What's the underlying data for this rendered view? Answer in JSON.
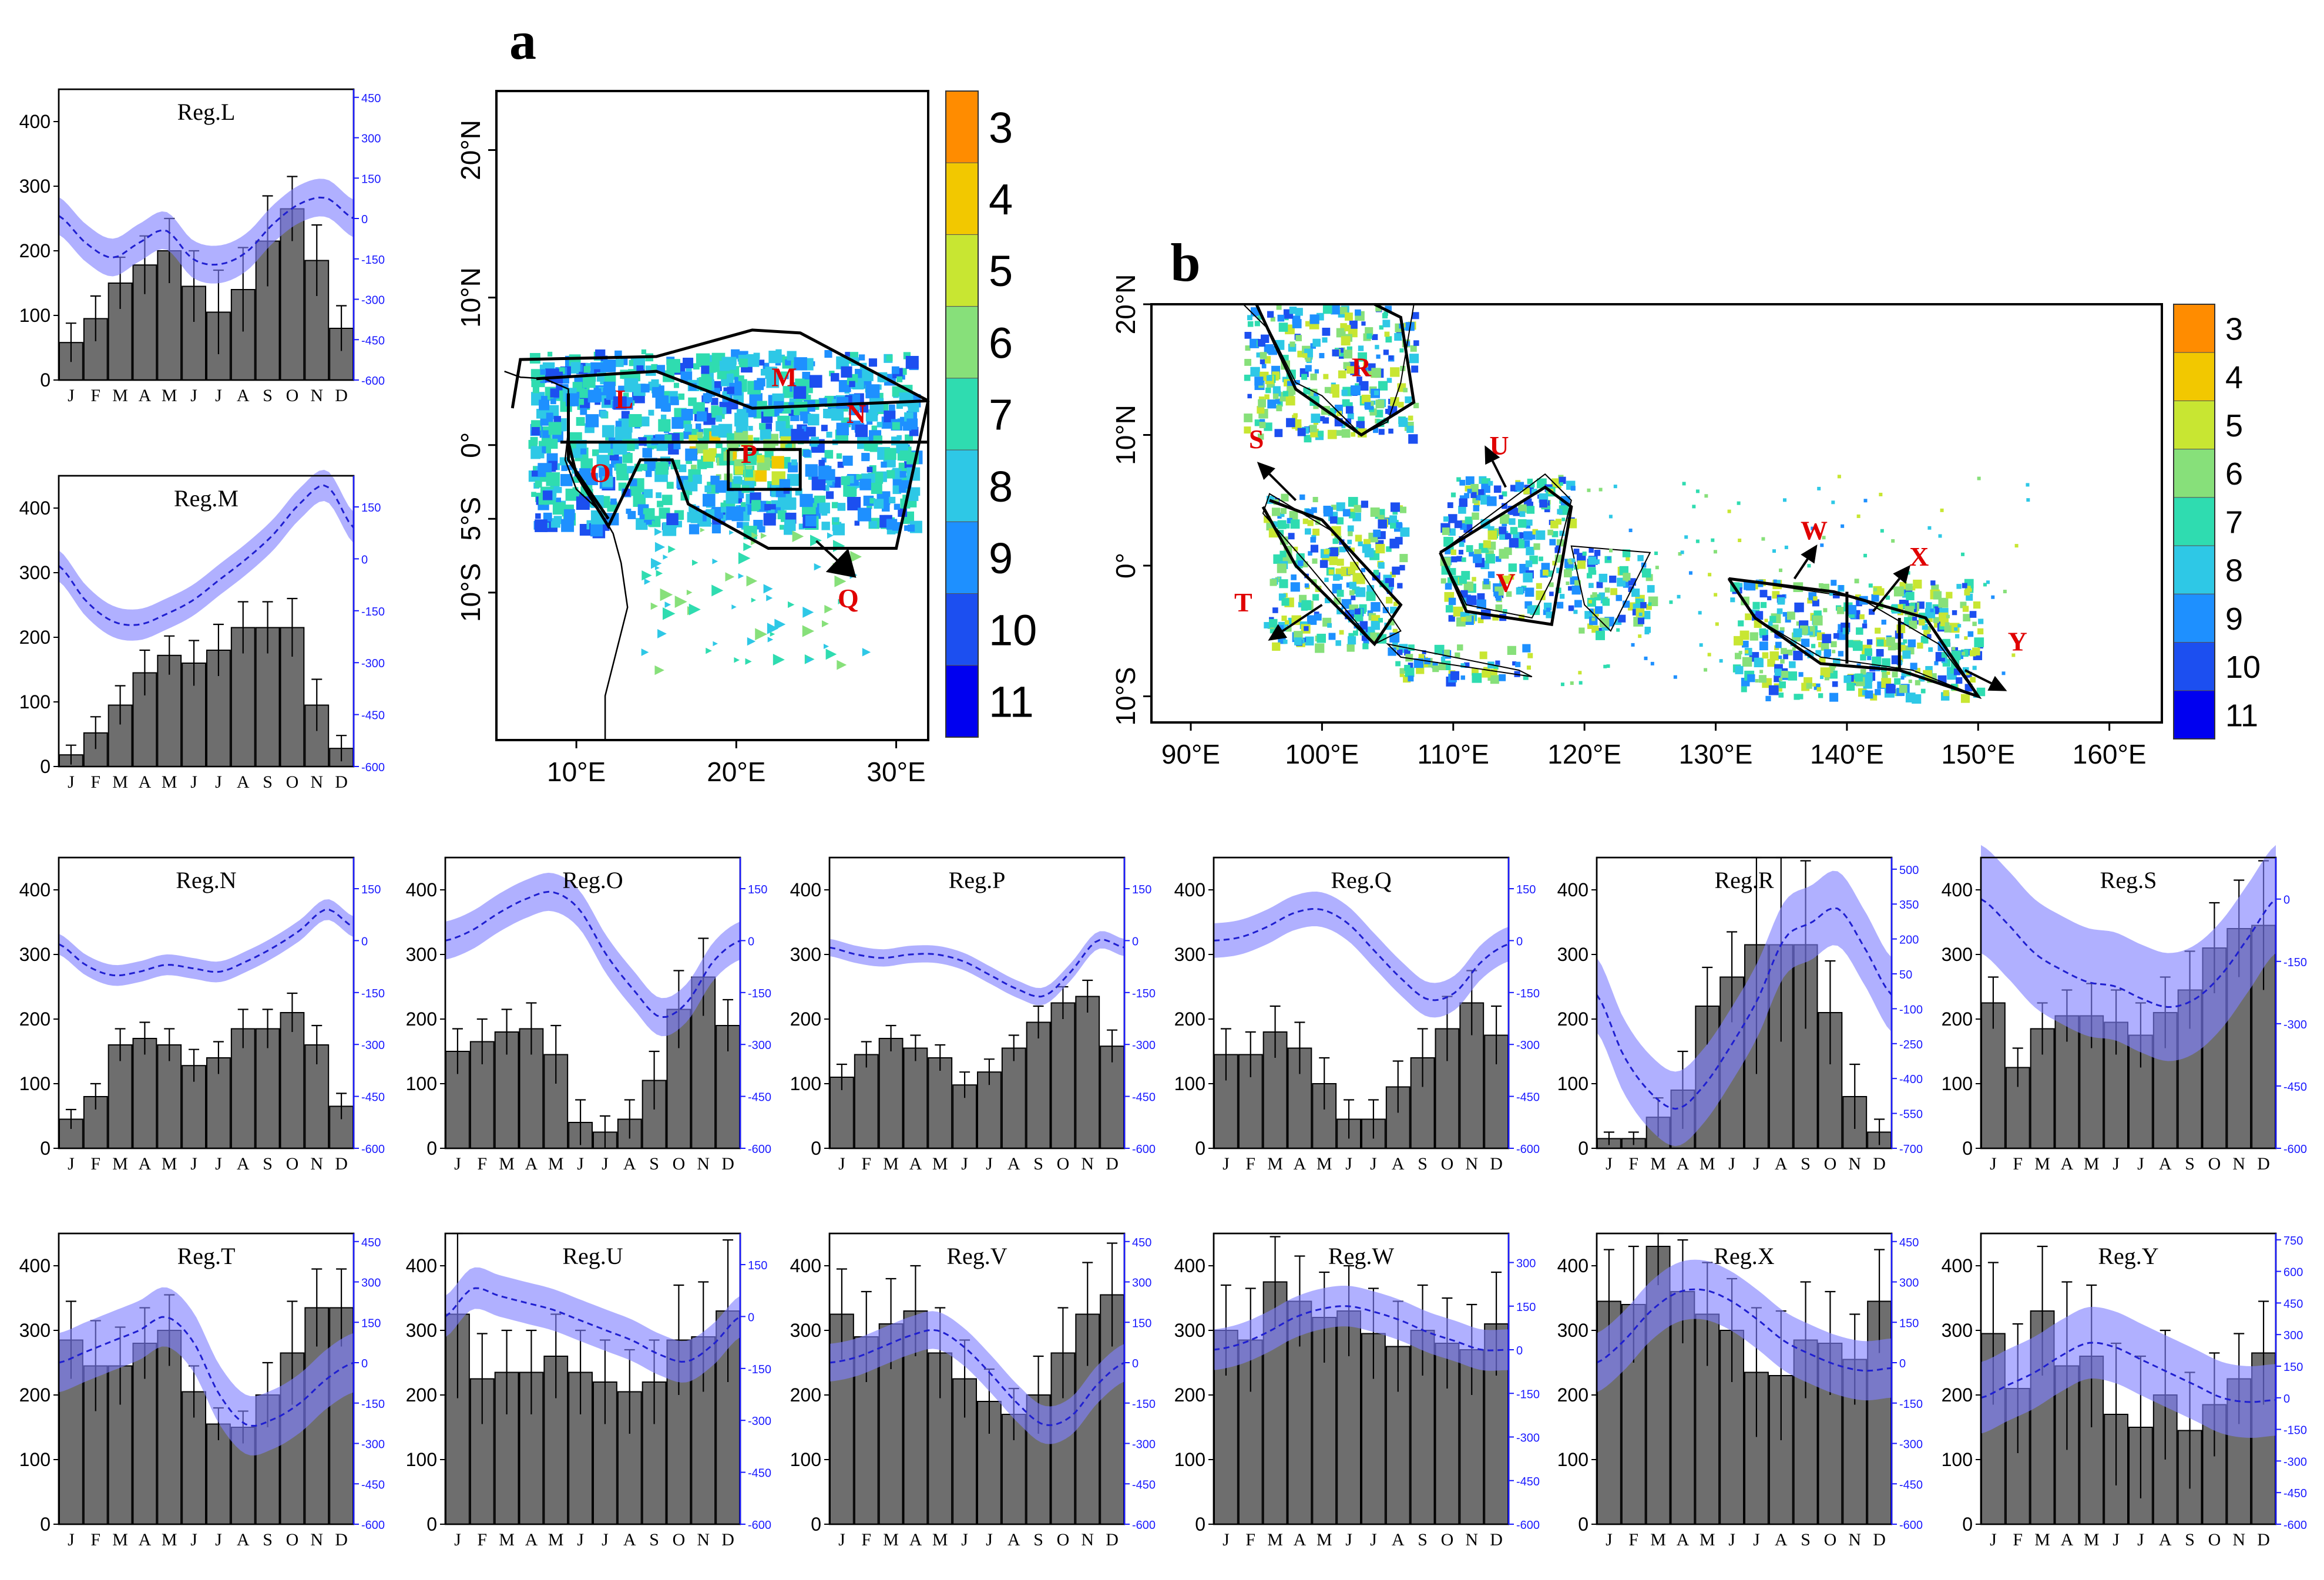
{
  "colors": {
    "bar": "#6e6e6e",
    "band": "#8080ff",
    "line": "#1f1fd0",
    "right_axis": "#1a1aff",
    "region_label": "#e00000",
    "palette": [
      "#ff8c00",
      "#f2c800",
      "#c8e632",
      "#87e07a",
      "#2fdcb0",
      "#2ec8e6",
      "#1e90ff",
      "#1c4ff0",
      "#0000f0"
    ]
  },
  "map_a": {
    "panel_label": "a",
    "lat_ticks": [
      "20°N",
      "10°N",
      "0°",
      "5°S",
      "10°S"
    ],
    "lon_ticks": [
      "10°E",
      "20°E",
      "30°E"
    ],
    "colorbar_labels": [
      "3",
      "4",
      "5",
      "6",
      "7",
      "8",
      "9",
      "10",
      "11"
    ],
    "regions": [
      "L",
      "M",
      "N",
      "O",
      "P",
      "Q"
    ]
  },
  "map_b": {
    "panel_label": "b",
    "lat_ticks": [
      "20°N",
      "10°N",
      "0°",
      "10°S"
    ],
    "lon_ticks": [
      "90°E",
      "100°E",
      "110°E",
      "120°E",
      "130°E",
      "140°E",
      "150°E",
      "160°E"
    ],
    "colorbar_labels": [
      "3",
      "4",
      "5",
      "6",
      "7",
      "8",
      "9",
      "10",
      "11"
    ],
    "regions": [
      "R",
      "S",
      "T",
      "U",
      "V",
      "W",
      "X",
      "Y"
    ]
  },
  "months": [
    "J",
    "F",
    "M",
    "A",
    "M",
    "J",
    "J",
    "A",
    "S",
    "O",
    "N",
    "D"
  ],
  "chart_data": [
    {
      "type": "bar",
      "title": "Reg.L",
      "ylim": [
        0,
        450
      ],
      "y_ticks": [
        0,
        100,
        200,
        300,
        400
      ],
      "right_ticks": [
        -600,
        -450,
        -300,
        -150,
        0,
        150,
        300,
        450
      ],
      "right_lim": [
        -600,
        480
      ],
      "values": [
        58,
        95,
        150,
        178,
        200,
        145,
        105,
        140,
        215,
        265,
        185,
        80
      ],
      "err": [
        30,
        35,
        40,
        45,
        50,
        55,
        65,
        65,
        70,
        50,
        55,
        35
      ],
      "line": [
        10,
        -90,
        -145,
        -90,
        -45,
        -150,
        -170,
        -125,
        -20,
        55,
        75,
        0
      ],
      "band_w": 70
    },
    {
      "type": "bar",
      "title": "Reg.M",
      "ylim": [
        0,
        450
      ],
      "y_ticks": [
        0,
        100,
        200,
        300,
        400
      ],
      "right_ticks": [
        -600,
        -450,
        -300,
        -150,
        0,
        150
      ],
      "right_lim": [
        -600,
        240
      ],
      "values": [
        18,
        52,
        95,
        145,
        172,
        160,
        180,
        215,
        215,
        215,
        95,
        28
      ],
      "err": [
        15,
        25,
        30,
        35,
        30,
        35,
        40,
        40,
        40,
        45,
        40,
        20
      ],
      "line": [
        -20,
        -120,
        -180,
        -190,
        -160,
        -120,
        -60,
        0,
        70,
        160,
        210,
        90
      ],
      "band_w": 45
    },
    {
      "type": "bar",
      "title": "Reg.N",
      "ylim": [
        0,
        450
      ],
      "y_ticks": [
        0,
        100,
        200,
        300,
        400
      ],
      "right_ticks": [
        -600,
        -450,
        -300,
        -150,
        0,
        150
      ],
      "right_lim": [
        -600,
        240
      ],
      "values": [
        45,
        80,
        160,
        170,
        160,
        128,
        140,
        185,
        185,
        210,
        160,
        65
      ],
      "err": [
        15,
        20,
        25,
        25,
        25,
        25,
        25,
        30,
        30,
        30,
        30,
        20
      ],
      "line": [
        -10,
        -70,
        -100,
        -90,
        -70,
        -80,
        -90,
        -60,
        -20,
        30,
        90,
        40
      ],
      "band_w": 30
    },
    {
      "type": "bar",
      "title": "Reg.O",
      "ylim": [
        0,
        450
      ],
      "y_ticks": [
        0,
        100,
        200,
        300,
        400
      ],
      "right_ticks": [
        -600,
        -450,
        -300,
        -150,
        0,
        150
      ],
      "right_lim": [
        -600,
        240
      ],
      "values": [
        150,
        165,
        180,
        185,
        145,
        40,
        25,
        45,
        105,
        215,
        265,
        190
      ],
      "err": [
        35,
        35,
        35,
        40,
        45,
        35,
        25,
        30,
        45,
        60,
        60,
        40
      ],
      "line": [
        0,
        30,
        80,
        120,
        140,
        90,
        -40,
        -140,
        -220,
        -180,
        -60,
        0
      ],
      "band_w": 55
    },
    {
      "type": "bar",
      "title": "Reg.P",
      "ylim": [
        0,
        450
      ],
      "y_ticks": [
        0,
        100,
        200,
        300,
        400
      ],
      "right_ticks": [
        -600,
        -450,
        -300,
        -150,
        0,
        150
      ],
      "right_lim": [
        -600,
        240
      ],
      "values": [
        110,
        145,
        170,
        155,
        140,
        98,
        118,
        155,
        195,
        225,
        235,
        158
      ],
      "err": [
        20,
        20,
        20,
        20,
        20,
        20,
        20,
        20,
        25,
        25,
        25,
        25
      ],
      "line": [
        -20,
        -40,
        -50,
        -40,
        -40,
        -60,
        -100,
        -140,
        -160,
        -90,
        0,
        -20
      ],
      "band_w": 25
    },
    {
      "type": "bar",
      "title": "Reg.Q",
      "ylim": [
        0,
        450
      ],
      "y_ticks": [
        0,
        100,
        200,
        300,
        400
      ],
      "right_ticks": [
        -600,
        -450,
        -300,
        -150,
        0,
        150
      ],
      "right_lim": [
        -600,
        240
      ],
      "values": [
        145,
        145,
        180,
        155,
        100,
        45,
        45,
        95,
        140,
        185,
        225,
        175
      ],
      "err": [
        40,
        35,
        40,
        40,
        40,
        30,
        30,
        40,
        45,
        50,
        50,
        45
      ],
      "line": [
        0,
        10,
        40,
        80,
        90,
        50,
        -30,
        -110,
        -170,
        -150,
        -60,
        -10
      ],
      "band_w": 50
    },
    {
      "type": "bar",
      "title": "Reg.R",
      "ylim": [
        0,
        450
      ],
      "y_ticks": [
        0,
        100,
        200,
        300,
        400
      ],
      "right_ticks": [
        -700,
        -550,
        -400,
        -250,
        -100,
        50,
        200,
        350,
        500
      ],
      "right_lim": [
        -700,
        550
      ],
      "values": [
        15,
        15,
        48,
        90,
        220,
        265,
        315,
        315,
        315,
        210,
        80,
        25
      ],
      "err": [
        10,
        10,
        30,
        60,
        60,
        70,
        200,
        150,
        130,
        80,
        50,
        20
      ],
      "line": [
        -40,
        -300,
        -460,
        -530,
        -430,
        -260,
        -60,
        200,
        270,
        330,
        160,
        -40
      ],
      "band_w": 160
    },
    {
      "type": "bar",
      "title": "Reg.S",
      "ylim": [
        0,
        450
      ],
      "y_ticks": [
        0,
        100,
        200,
        300,
        400
      ],
      "right_ticks": [
        -600,
        -450,
        -300,
        -150,
        0
      ],
      "right_lim": [
        -600,
        100
      ],
      "values": [
        225,
        125,
        185,
        205,
        205,
        195,
        175,
        210,
        245,
        310,
        340,
        345
      ],
      "err": [
        40,
        30,
        40,
        40,
        50,
        50,
        50,
        55,
        60,
        70,
        75,
        100
      ],
      "line": [
        0,
        -60,
        -130,
        -170,
        -200,
        -210,
        -240,
        -260,
        -240,
        -180,
        -90,
        0
      ],
      "band_w": 130
    },
    {
      "type": "bar",
      "title": "Reg.T",
      "ylim": [
        0,
        450
      ],
      "y_ticks": [
        0,
        100,
        200,
        300,
        400
      ],
      "right_ticks": [
        -600,
        -450,
        -300,
        -150,
        0,
        150,
        300,
        450
      ],
      "right_lim": [
        -600,
        480
      ],
      "values": [
        285,
        245,
        245,
        280,
        300,
        205,
        155,
        150,
        200,
        265,
        335,
        335
      ],
      "err": [
        60,
        70,
        60,
        55,
        55,
        40,
        25,
        25,
        50,
        80,
        60,
        60
      ],
      "line": [
        0,
        40,
        80,
        120,
        170,
        80,
        -120,
        -230,
        -210,
        -150,
        -60,
        0
      ],
      "band_w": 110
    },
    {
      "type": "bar",
      "title": "Reg.U",
      "ylim": [
        0,
        450
      ],
      "y_ticks": [
        0,
        100,
        200,
        300,
        400
      ],
      "right_ticks": [
        -600,
        -450,
        -300,
        -150,
        0,
        150
      ],
      "right_lim": [
        -600,
        240
      ],
      "values": [
        325,
        225,
        235,
        235,
        260,
        235,
        220,
        205,
        220,
        285,
        290,
        330
      ],
      "err": [
        130,
        70,
        65,
        65,
        65,
        65,
        65,
        65,
        65,
        85,
        85,
        110
      ],
      "line": [
        0,
        80,
        60,
        40,
        20,
        -10,
        -40,
        -70,
        -110,
        -130,
        -80,
        0
      ],
      "band_w": 60
    },
    {
      "type": "bar",
      "title": "Reg.V",
      "ylim": [
        0,
        450
      ],
      "y_ticks": [
        0,
        100,
        200,
        300,
        400
      ],
      "right_ticks": [
        -600,
        -450,
        -300,
        -150,
        0,
        150,
        300,
        450
      ],
      "right_lim": [
        -600,
        480
      ],
      "values": [
        325,
        290,
        310,
        330,
        265,
        225,
        190,
        170,
        200,
        265,
        325,
        355
      ],
      "err": [
        70,
        70,
        70,
        70,
        70,
        60,
        50,
        40,
        60,
        70,
        80,
        80
      ],
      "line": [
        0,
        20,
        60,
        100,
        120,
        60,
        -40,
        -150,
        -230,
        -200,
        -80,
        0
      ],
      "band_w": 70
    },
    {
      "type": "bar",
      "title": "Reg.W",
      "ylim": [
        0,
        450
      ],
      "y_ticks": [
        0,
        100,
        200,
        300,
        400
      ],
      "right_ticks": [
        -600,
        -450,
        -300,
        -150,
        0,
        150,
        300
      ],
      "right_lim": [
        -600,
        400
      ],
      "values": [
        300,
        285,
        375,
        345,
        320,
        330,
        295,
        275,
        300,
        280,
        270,
        310
      ],
      "err": [
        70,
        80,
        70,
        70,
        70,
        70,
        70,
        70,
        70,
        70,
        70,
        80
      ],
      "line": [
        0,
        20,
        60,
        110,
        140,
        150,
        130,
        100,
        60,
        30,
        0,
        0
      ],
      "band_w": 70
    },
    {
      "type": "bar",
      "title": "Reg.X",
      "ylim": [
        0,
        450
      ],
      "y_ticks": [
        0,
        100,
        200,
        300,
        400
      ],
      "right_ticks": [
        -600,
        -450,
        -300,
        -150,
        0,
        150,
        300,
        450
      ],
      "right_lim": [
        -600,
        480
      ],
      "values": [
        345,
        340,
        430,
        360,
        325,
        300,
        235,
        230,
        285,
        280,
        255,
        345
      ],
      "err": [
        80,
        90,
        60,
        80,
        80,
        80,
        100,
        100,
        90,
        80,
        70,
        80
      ],
      "line": [
        0,
        80,
        190,
        260,
        270,
        230,
        160,
        80,
        30,
        -10,
        -30,
        -20
      ],
      "band_w": 110
    },
    {
      "type": "bar",
      "title": "Reg.Y",
      "ylim": [
        0,
        450
      ],
      "y_ticks": [
        0,
        100,
        200,
        300,
        400
      ],
      "right_ticks": [
        -600,
        -450,
        -300,
        -150,
        0,
        150,
        300,
        450,
        600,
        750
      ],
      "right_lim": [
        -600,
        780
      ],
      "values": [
        295,
        210,
        330,
        245,
        260,
        170,
        150,
        200,
        145,
        185,
        225,
        265
      ],
      "err": [
        110,
        100,
        100,
        130,
        110,
        110,
        110,
        100,
        90,
        80,
        70,
        80
      ],
      "line": [
        0,
        60,
        120,
        200,
        260,
        240,
        180,
        120,
        60,
        0,
        -20,
        -10
      ],
      "band_w": 170
    }
  ]
}
